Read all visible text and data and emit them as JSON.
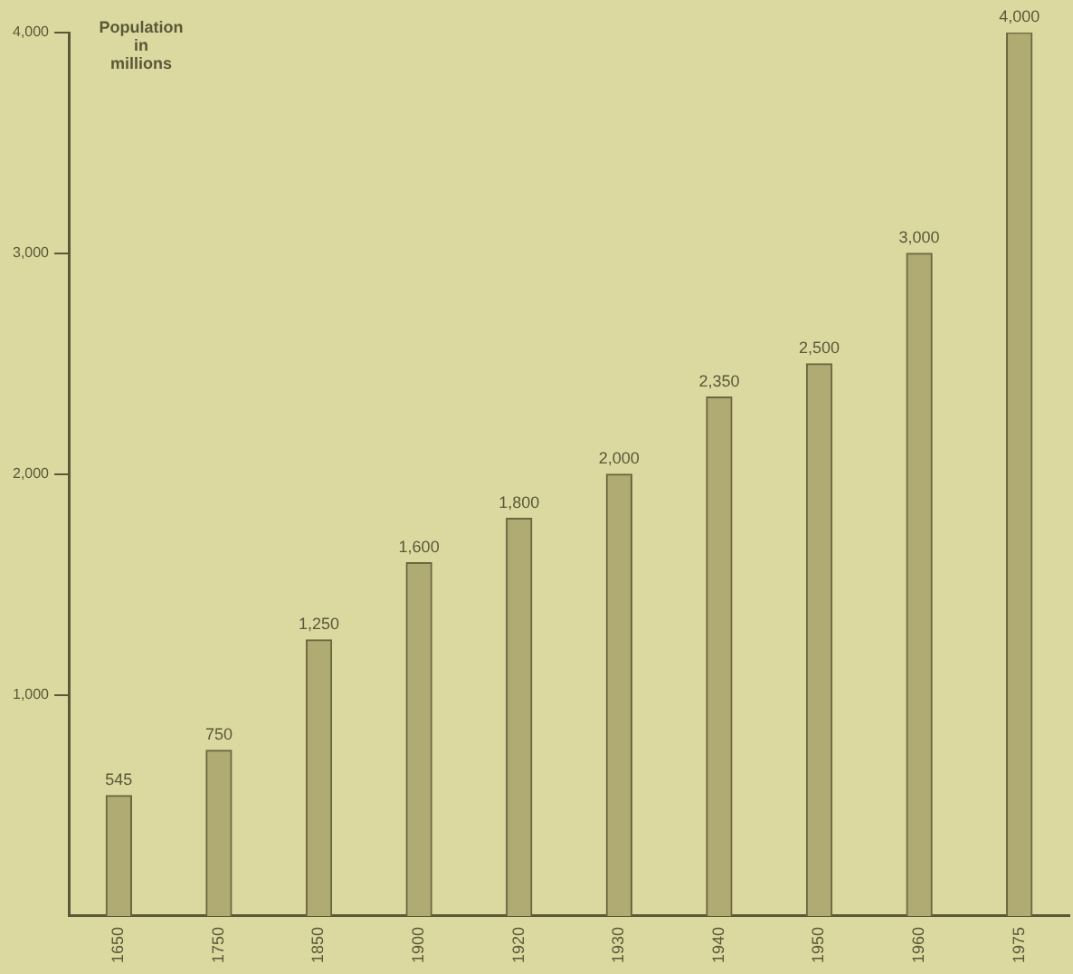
{
  "chart_data": {
    "type": "bar",
    "ylabel": "Population\nin\nmillions",
    "categories": [
      "1650",
      "1750",
      "1850",
      "1900",
      "1920",
      "1930",
      "1940",
      "1950",
      "1960",
      "1975"
    ],
    "values": [
      545,
      750,
      1250,
      1600,
      1800,
      2000,
      2350,
      2500,
      3000,
      4000
    ],
    "color": "#b0ab72",
    "ylim": [
      0,
      4000
    ],
    "yticks": [
      {
        "value": 1000,
        "label": "1,000"
      },
      {
        "value": 2000,
        "label": "2,000"
      },
      {
        "value": 3000,
        "label": "3,000"
      },
      {
        "value": 4000,
        "label": "4,000"
      }
    ],
    "value_labels": [
      "545",
      "750",
      "1,250",
      "1,600",
      "1,800",
      "2,000",
      "2,350",
      "2,500",
      "3,000",
      "4,000"
    ],
    "grid": false,
    "legend": false
  }
}
